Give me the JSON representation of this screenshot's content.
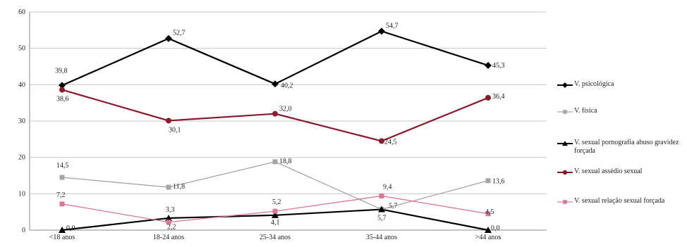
{
  "chart_data": {
    "type": "line",
    "categories": [
      "<18 anos",
      "18-24 anos",
      "25-34 anos",
      "35-44 anos",
      ">44 anos"
    ],
    "ylim": [
      0,
      60
    ],
    "yticks": [
      "0",
      "10",
      "20",
      "30",
      "40",
      "50",
      "60"
    ],
    "grid": true,
    "legend_position": "right",
    "series": [
      {
        "name": "V. psicológica",
        "color": "#000000",
        "marker": "diamond",
        "values": [
          39.8,
          52.7,
          40.2,
          54.7,
          45.3
        ],
        "labels": [
          "39,8",
          "52,7",
          "40,2",
          "54,7",
          "45,3"
        ]
      },
      {
        "name": "V. física",
        "color": "#a6a6a6",
        "marker": "square",
        "values": [
          14.5,
          11.8,
          18.8,
          5.7,
          13.6
        ],
        "labels": [
          "14,5",
          "11,8",
          "18,8",
          "5,7",
          "13,6"
        ]
      },
      {
        "name": "V. sexual pornografia abuso gravidez forçada",
        "color": "#000000",
        "marker": "triangle",
        "values": [
          0.0,
          3.3,
          4.1,
          5.7,
          0.0
        ],
        "labels": [
          "0,0",
          "3,3",
          "4,1",
          "5,7",
          "0,0"
        ]
      },
      {
        "name": "V. sexual assédio sexual",
        "color": "#8b1a2c",
        "marker": "circle",
        "values": [
          38.6,
          30.1,
          32.0,
          24.5,
          36.4
        ],
        "labels": [
          "38,6",
          "30,1",
          "32,0",
          "24,5",
          "36,4"
        ]
      },
      {
        "name": "V. sexual relação sexual forçada",
        "color": "#d9779b",
        "marker": "square",
        "values": [
          7.2,
          2.2,
          5.2,
          9.4,
          4.5
        ],
        "labels": [
          "7,2",
          "2,2",
          "5,2",
          "9,4",
          "4,5"
        ]
      }
    ]
  }
}
